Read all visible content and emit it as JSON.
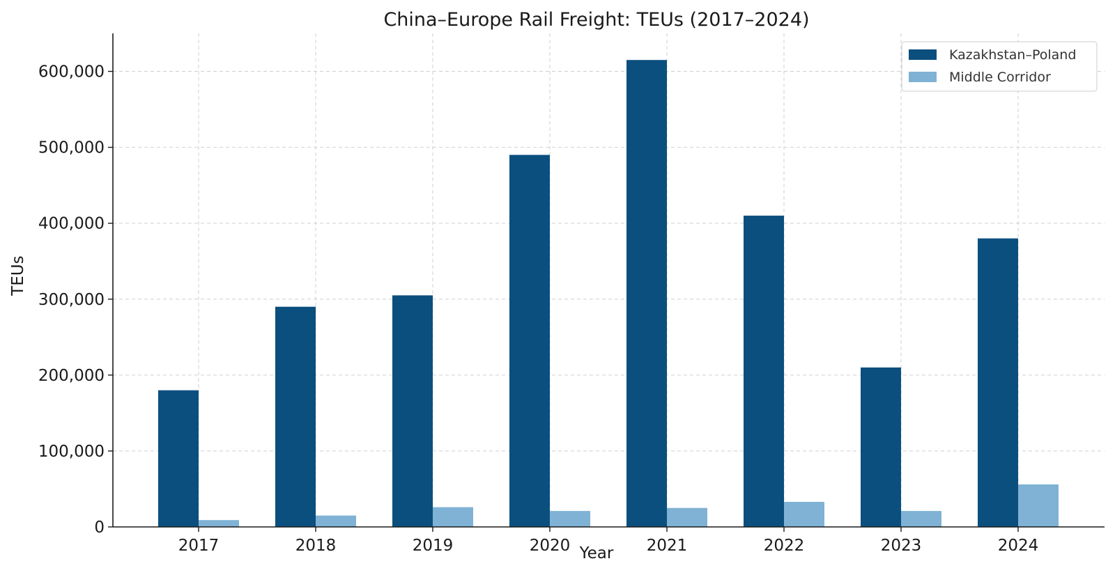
{
  "chart_data": {
    "type": "bar",
    "title": "China–Europe Rail Freight: TEUs (2017–2024)",
    "xlabel": "Year",
    "ylabel": "TEUs",
    "categories": [
      "2017",
      "2018",
      "2019",
      "2020",
      "2021",
      "2022",
      "2023",
      "2024"
    ],
    "series": [
      {
        "name": "Kazakhstan–Poland",
        "color": "#0b4f7f",
        "values": [
          180000,
          290000,
          305000,
          490000,
          615000,
          410000,
          210000,
          380000
        ]
      },
      {
        "name": "Middle Corridor",
        "color": "#7fb2d5",
        "values": [
          9000,
          15000,
          26000,
          21000,
          25000,
          33000,
          21000,
          56000
        ]
      }
    ],
    "ylim": [
      0,
      650000
    ],
    "yticks": [
      0,
      100000,
      200000,
      300000,
      400000,
      500000,
      600000
    ],
    "ytick_labels": [
      "0",
      "100,000",
      "200,000",
      "300,000",
      "400,000",
      "500,000",
      "600,000"
    ],
    "grid": true,
    "legend_position": "top-right"
  }
}
